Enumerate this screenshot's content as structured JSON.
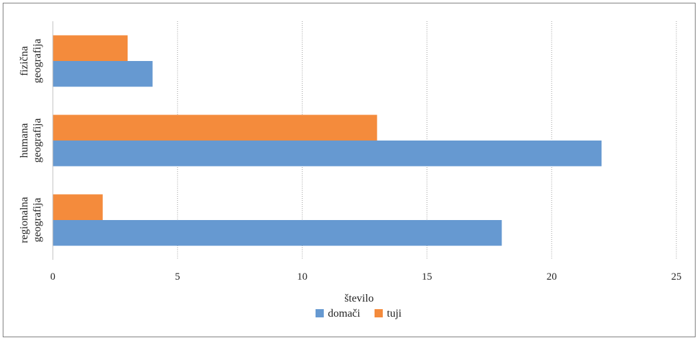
{
  "chart_data": {
    "type": "bar",
    "orientation": "horizontal",
    "categories": [
      [
        "fizična",
        "geografija"
      ],
      [
        "humana",
        "geografija"
      ],
      [
        "regionalna",
        "geografija"
      ]
    ],
    "series": [
      {
        "name": "domači",
        "color": "#6699d1",
        "values": [
          4,
          22,
          18
        ]
      },
      {
        "name": "tuji",
        "color": "#f48b3c",
        "values": [
          3,
          13,
          2
        ]
      }
    ],
    "xlabel": "število",
    "ylabel": "",
    "xlim": [
      0,
      25
    ],
    "xticks": [
      0,
      5,
      10,
      15,
      20,
      25
    ],
    "grid": "vertical-dotted",
    "legend_position": "bottom"
  }
}
